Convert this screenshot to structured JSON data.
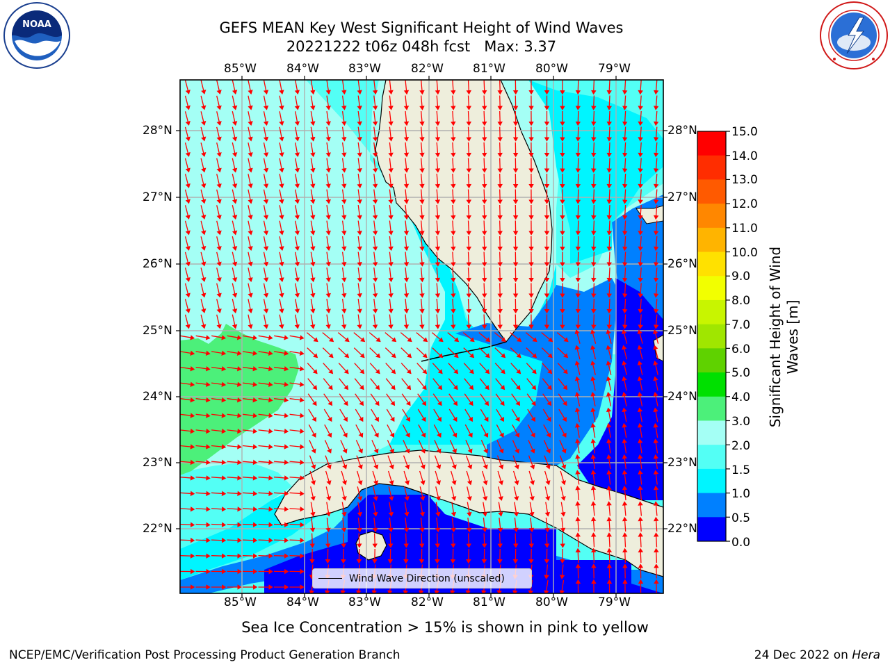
{
  "title_line1": "GEFS MEAN Key West Significant Height of Wind Waves",
  "title_line2": "20221222 t06z 048h fcst   Max: 3.37",
  "lon_labels": [
    "85°W",
    "84°W",
    "83°W",
    "82°W",
    "81°W",
    "80°W",
    "79°W"
  ],
  "lat_labels": [
    "28°N",
    "27°N",
    "26°N",
    "25°N",
    "24°N",
    "23°N",
    "22°N"
  ],
  "legend_label": "Wind Wave Direction (unscaled)",
  "colorbar": {
    "title": "Significant Height of Wind Waves [m]",
    "ticks": [
      "15.0",
      "14.0",
      "13.0",
      "12.0",
      "11.0",
      "10.0",
      "9.0",
      "8.0",
      "7.0",
      "6.0",
      "5.0",
      "4.0",
      "3.0",
      "2.0",
      "1.5",
      "1.0",
      "0.5",
      "0.0"
    ],
    "colors_top_to_bottom": [
      "#ff0000",
      "#ff2d00",
      "#ff5a00",
      "#ff8700",
      "#ffb400",
      "#ffe100",
      "#f2ff00",
      "#c8f500",
      "#a0e600",
      "#5fd200",
      "#00e000",
      "#4cf07a",
      "#a4fff5",
      "#53fff5",
      "#00f5ff",
      "#0080ff",
      "#0000ff"
    ]
  },
  "colors": {
    "land": "#eeeedc",
    "arrow": "#ff0000",
    "grid": "#b0b0b0",
    "shade_0_05": "#0000ff",
    "shade_05_1": "#0080ff",
    "shade_1_15": "#00f5ff",
    "shade_15_2": "#53fff5",
    "shade_2_3": "#a4fff5",
    "shade_3_4": "#4cf07a"
  },
  "footnote": "Sea Ice Concentration > 15% is shown in pink to yellow",
  "credit_left": "NCEP/EMC/Verification Post Processing Product Generation Branch",
  "credit_right_prefix": "24 Dec 2022 on",
  "credit_right_machine": "Hera",
  "logos": {
    "left": "noaa-logo",
    "right": "nws-logo",
    "left_text": "NOAA"
  }
}
